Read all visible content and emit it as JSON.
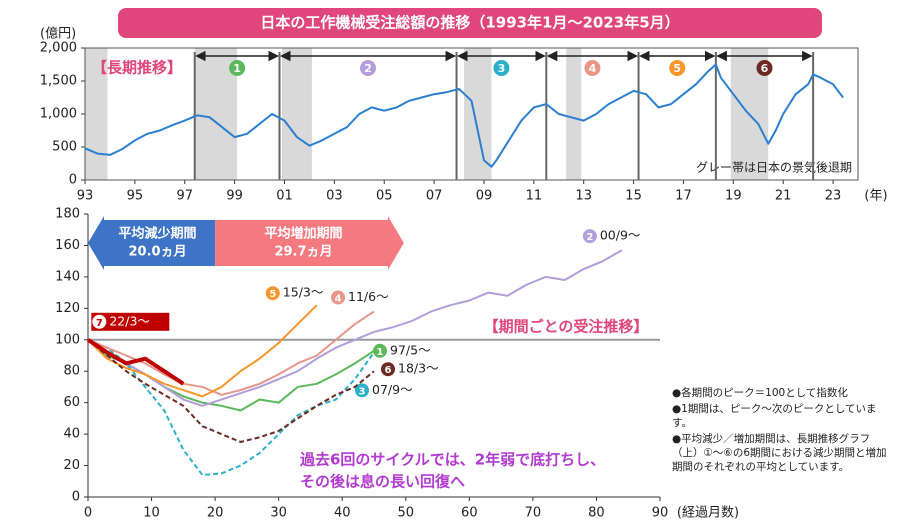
{
  "title": "日本の工作機械受注総額の推移（1993年1月～2023年5月）",
  "chart_data": [
    {
      "type": "line",
      "label": "【長期推移】",
      "y_unit": "(億円)",
      "x_unit": "(年)",
      "color": "#2b7fd0",
      "annotation": "グレー帯は日本の景気後退期",
      "xlim": [
        1993,
        2024
      ],
      "ylim": [
        0,
        2000
      ],
      "xticks": [
        {
          "value": 1993,
          "label": "93"
        },
        {
          "value": 1995,
          "label": "95"
        },
        {
          "value": 1997,
          "label": "97"
        },
        {
          "value": 1999,
          "label": "99"
        },
        {
          "value": 2001,
          "label": "01"
        },
        {
          "value": 2003,
          "label": "03"
        },
        {
          "value": 2005,
          "label": "05"
        },
        {
          "value": 2007,
          "label": "07"
        },
        {
          "value": 2009,
          "label": "09"
        },
        {
          "value": 2011,
          "label": "11"
        },
        {
          "value": 2013,
          "label": "13"
        },
        {
          "value": 2015,
          "label": "15"
        },
        {
          "value": 2017,
          "label": "17"
        },
        {
          "value": 2019,
          "label": "19"
        },
        {
          "value": 2021,
          "label": "21"
        },
        {
          "value": 2023,
          "label": "23"
        }
      ],
      "yticks": [
        0,
        500,
        {
          "value": 1000,
          "label": "1,000"
        },
        {
          "value": 1500,
          "label": "1,500"
        },
        {
          "value": 2000,
          "label": "2,000"
        }
      ],
      "bands": [
        [
          1993,
          1993.9
        ],
        [
          1997.4,
          1999.1
        ],
        [
          2000.9,
          2002.1
        ],
        [
          2008.2,
          2009.3
        ],
        [
          2012.3,
          2012.9
        ],
        [
          2018.9,
          2020.4
        ]
      ],
      "period_starts": [
        1997.4,
        2000.8,
        2007.9,
        2011.5,
        2015.2,
        2018.3,
        2022.2
      ],
      "period_labels": [
        "1",
        "2",
        "3",
        "4",
        "5",
        "6"
      ],
      "period_colors": [
        "#5cb85c",
        "#b39ddb",
        "#2bb0c9",
        "#e8958a",
        "#f7962b",
        "#6b2a22"
      ],
      "x": [
        1993,
        1993.5,
        1994,
        1994.5,
        1995,
        1995.5,
        1996,
        1996.5,
        1997,
        1997.5,
        1998,
        1998.5,
        1999,
        1999.5,
        2000,
        2000.5,
        2001,
        2001.5,
        2002,
        2002.5,
        2003,
        2003.5,
        2004,
        2004.5,
        2005,
        2005.5,
        2006,
        2006.5,
        2007,
        2007.5,
        2008,
        2008.5,
        2009,
        2009.3,
        2009.5,
        2010,
        2010.5,
        2011,
        2011.5,
        2012,
        2012.5,
        2013,
        2013.5,
        2014,
        2014.5,
        2015,
        2015.5,
        2016,
        2016.5,
        2017,
        2017.5,
        2018,
        2018.3,
        2018.5,
        2019,
        2019.5,
        2020,
        2020.4,
        2020.7,
        2021,
        2021.5,
        2022,
        2022.2,
        2022.5,
        2023,
        2023.4
      ],
      "values": [
        480,
        400,
        380,
        470,
        600,
        700,
        750,
        830,
        900,
        980,
        950,
        800,
        650,
        700,
        850,
        1000,
        900,
        650,
        520,
        600,
        700,
        800,
        1000,
        1100,
        1050,
        1100,
        1200,
        1250,
        1300,
        1330,
        1380,
        1200,
        300,
        200,
        300,
        600,
        900,
        1100,
        1150,
        1000,
        950,
        900,
        1000,
        1150,
        1250,
        1350,
        1300,
        1100,
        1150,
        1300,
        1450,
        1650,
        1750,
        1550,
        1300,
        1050,
        850,
        550,
        750,
        1000,
        1300,
        1450,
        1600,
        1550,
        1450,
        1250
      ]
    },
    {
      "type": "line",
      "label": "【期間ごとの受注推移】",
      "x_unit": "(経過月数)",
      "xlim": [
        0,
        90
      ],
      "ylim": [
        0,
        180
      ],
      "xticks": [
        0,
        10,
        20,
        30,
        40,
        50,
        60,
        70,
        80,
        90
      ],
      "yticks": [
        0,
        20,
        40,
        60,
        80,
        100,
        120,
        140,
        160,
        180
      ],
      "reference_line": 100,
      "decrease": {
        "label": "平均減少期間",
        "value": 20.0,
        "value_label": "20.0ヵ月"
      },
      "increase": {
        "label": "平均増加期間",
        "value": 29.7,
        "value_label": "29.7ヵ月"
      },
      "annotation": [
        "過去6回のサイクルでは、2年弱で底打ちし、",
        "その後は息の長い回復へ"
      ],
      "notes": [
        "●各期間のピーク＝100として指数化",
        "●1期間は、ピーク～次のピークとしています。",
        "●平均減少／増加期間は、長期推移グラフ（上）①～⑥の6期間における減少期間と増加期間のそれぞれの平均としています。"
      ],
      "series": [
        {
          "name": "97/5～",
          "badge": "1",
          "color": "#5cb85c",
          "x": [
            0,
            3,
            6,
            9,
            12,
            15,
            18,
            21,
            24,
            27,
            30,
            33,
            36,
            39,
            42,
            45
          ],
          "values": [
            100,
            90,
            85,
            78,
            70,
            64,
            60,
            58,
            55,
            62,
            60,
            70,
            72,
            78,
            85,
            93
          ]
        },
        {
          "name": "00/9～",
          "badge": "2",
          "color": "#b39ddb",
          "x": [
            0,
            3,
            6,
            9,
            12,
            15,
            18,
            21,
            24,
            27,
            30,
            33,
            36,
            39,
            42,
            45,
            48,
            51,
            54,
            57,
            60,
            63,
            66,
            69,
            72,
            75,
            78,
            81,
            84
          ],
          "values": [
            100,
            92,
            85,
            78,
            70,
            62,
            58,
            62,
            66,
            70,
            75,
            80,
            88,
            95,
            100,
            105,
            108,
            112,
            118,
            122,
            125,
            130,
            128,
            135,
            140,
            138,
            145,
            150,
            157
          ]
        },
        {
          "name": "07/9～",
          "badge": "3",
          "color": "#2bb0c9",
          "dashed": true,
          "x": [
            0,
            3,
            6,
            9,
            12,
            15,
            18,
            21,
            24,
            27,
            30,
            33,
            36,
            39,
            42,
            45
          ],
          "values": [
            100,
            95,
            85,
            70,
            55,
            30,
            14,
            15,
            20,
            28,
            40,
            52,
            58,
            62,
            75,
            92
          ]
        },
        {
          "name": "11/6～",
          "badge": "4",
          "color": "#e8958a",
          "x": [
            0,
            3,
            6,
            9,
            12,
            15,
            18,
            21,
            24,
            27,
            30,
            33,
            36,
            39,
            42,
            45
          ],
          "values": [
            100,
            95,
            90,
            85,
            78,
            72,
            70,
            65,
            68,
            72,
            78,
            85,
            90,
            100,
            110,
            118
          ]
        },
        {
          "name": "15/3～",
          "badge": "5",
          "color": "#f7962b",
          "x": [
            0,
            3,
            6,
            9,
            12,
            15,
            18,
            21,
            24,
            27,
            30,
            33,
            36
          ],
          "values": [
            100,
            88,
            82,
            78,
            72,
            68,
            64,
            70,
            80,
            88,
            98,
            110,
            122
          ]
        },
        {
          "name": "18/3～",
          "badge": "6",
          "color": "#6b2a22",
          "dashed": true,
          "x": [
            0,
            3,
            6,
            9,
            12,
            15,
            18,
            21,
            24,
            27,
            30,
            33,
            36,
            39,
            42,
            45
          ],
          "values": [
            100,
            90,
            80,
            72,
            65,
            58,
            45,
            40,
            35,
            38,
            42,
            50,
            58,
            65,
            70,
            80
          ]
        },
        {
          "name": "22/3～",
          "badge": "7",
          "color": "#c00000",
          "x": [
            0,
            3,
            6,
            9,
            12,
            15
          ],
          "values": [
            100,
            92,
            85,
            88,
            80,
            72
          ]
        }
      ]
    }
  ]
}
